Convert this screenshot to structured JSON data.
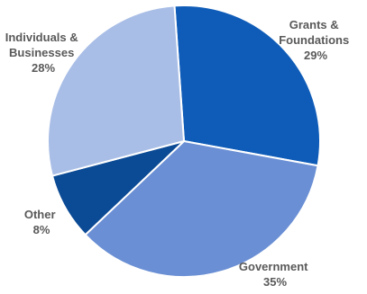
{
  "chart_data": {
    "type": "pie",
    "title": "",
    "slices": [
      {
        "label_lines": [
          "Grants &",
          "Foundations"
        ],
        "value": 29,
        "value_label": "29%",
        "color": "#0F5CB8"
      },
      {
        "label_lines": [
          "Government"
        ],
        "value": 35,
        "value_label": "35%",
        "color": "#6A8FD4"
      },
      {
        "label_lines": [
          "Other"
        ],
        "value": 8,
        "value_label": "8%",
        "color": "#0B4A94"
      },
      {
        "label_lines": [
          "Individuals &",
          "Businesses"
        ],
        "value": 28,
        "value_label": "28%",
        "color": "#A9BEE6"
      }
    ]
  }
}
